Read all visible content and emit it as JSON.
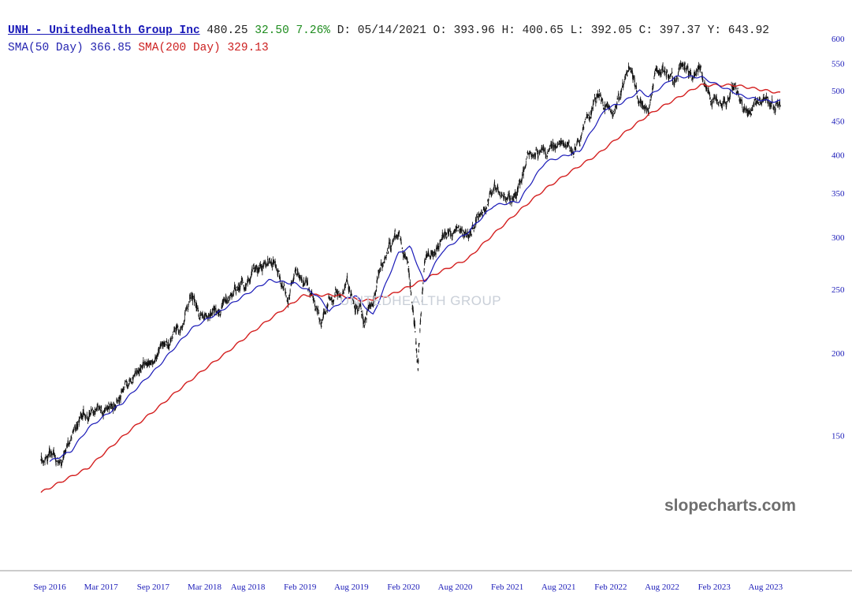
{
  "header": {
    "ticker_name": "UNH - Unitedhealth Group Inc",
    "last_price": "480.25",
    "change": "32.50",
    "change_pct": "7.26%",
    "date_label": "D: 05/14/2021",
    "open_label": "O: 393.96",
    "high_label": "H: 400.65",
    "low_label": "L: 392.05",
    "close_label": "C: 397.37",
    "y_label": "Y: 643.92",
    "sma50_label": "SMA(50 Day) 366.85",
    "sma200_label": "SMA(200 Day) 329.13"
  },
  "watermark": {
    "site": "slopecharts.com",
    "logo_text": "UNITEDHEALTH GROUP"
  },
  "colors": {
    "candles": "#111111",
    "sma50": "#1a1ab8",
    "sma200": "#d42020",
    "y_tick_labels": "#1a1ab8",
    "x_tick_labels": "#1a1ab8",
    "ticker_title": "#1a1ab8",
    "change_positive": "#1e8c1e",
    "axis_line": "#999999"
  },
  "chart_data": {
    "type": "line",
    "series_type": "ohlc price bars with moving averages",
    "y_scale": "log",
    "ylim": [
      100,
      615
    ],
    "y_ticks": [
      150,
      200,
      250,
      300,
      350,
      400,
      450,
      500,
      550,
      600
    ],
    "x_tick_labels": [
      "Sep 2016",
      "Mar 2017",
      "Sep 2017",
      "Mar 2018",
      "Aug 2018",
      "Feb 2019",
      "Aug 2019",
      "Feb 2020",
      "Aug 2020",
      "Feb 2021",
      "Aug 2021",
      "Feb 2022",
      "Aug 2022",
      "Feb 2023",
      "Aug 2023"
    ],
    "x_tick_dates": [
      "2016-09-01",
      "2017-03-01",
      "2017-09-01",
      "2018-03-01",
      "2018-08-01",
      "2019-02-01",
      "2019-08-01",
      "2020-02-01",
      "2020-08-01",
      "2021-02-01",
      "2021-08-01",
      "2022-02-01",
      "2022-08-01",
      "2023-02-01",
      "2023-08-01"
    ],
    "x_range": [
      "2016-08-01",
      "2023-09-22"
    ],
    "grid": false,
    "legend": "top-left",
    "price_anchors": [
      {
        "date": "2016-08-01",
        "price": 137
      },
      {
        "date": "2016-09-01",
        "price": 141
      },
      {
        "date": "2016-10-15",
        "price": 137
      },
      {
        "date": "2016-11-15",
        "price": 148
      },
      {
        "date": "2016-12-15",
        "price": 160
      },
      {
        "date": "2017-01-15",
        "price": 161
      },
      {
        "date": "2017-02-15",
        "price": 164
      },
      {
        "date": "2017-03-15",
        "price": 165
      },
      {
        "date": "2017-04-15",
        "price": 170
      },
      {
        "date": "2017-05-15",
        "price": 175
      },
      {
        "date": "2017-06-15",
        "price": 185
      },
      {
        "date": "2017-07-15",
        "price": 190
      },
      {
        "date": "2017-08-15",
        "price": 195
      },
      {
        "date": "2017-09-15",
        "price": 198
      },
      {
        "date": "2017-10-15",
        "price": 208
      },
      {
        "date": "2017-11-15",
        "price": 215
      },
      {
        "date": "2017-12-15",
        "price": 220
      },
      {
        "date": "2018-01-15",
        "price": 245
      },
      {
        "date": "2018-02-15",
        "price": 228
      },
      {
        "date": "2018-03-15",
        "price": 222
      },
      {
        "date": "2018-04-15",
        "price": 236
      },
      {
        "date": "2018-05-15",
        "price": 240
      },
      {
        "date": "2018-06-15",
        "price": 248
      },
      {
        "date": "2018-07-15",
        "price": 252
      },
      {
        "date": "2018-08-15",
        "price": 262
      },
      {
        "date": "2018-09-15",
        "price": 265
      },
      {
        "date": "2018-10-10",
        "price": 268
      },
      {
        "date": "2018-11-01",
        "price": 270
      },
      {
        "date": "2018-12-20",
        "price": 240
      },
      {
        "date": "2019-01-15",
        "price": 265
      },
      {
        "date": "2019-02-15",
        "price": 255
      },
      {
        "date": "2019-03-15",
        "price": 245
      },
      {
        "date": "2019-04-17",
        "price": 214
      },
      {
        "date": "2019-05-15",
        "price": 240
      },
      {
        "date": "2019-06-15",
        "price": 248
      },
      {
        "date": "2019-07-15",
        "price": 258
      },
      {
        "date": "2019-08-15",
        "price": 238
      },
      {
        "date": "2019-09-15",
        "price": 225
      },
      {
        "date": "2019-10-15",
        "price": 238
      },
      {
        "date": "2019-11-15",
        "price": 272
      },
      {
        "date": "2019-12-15",
        "price": 290
      },
      {
        "date": "2020-01-15",
        "price": 300
      },
      {
        "date": "2020-02-15",
        "price": 280
      },
      {
        "date": "2020-03-23",
        "price": 190
      },
      {
        "date": "2020-04-15",
        "price": 275
      },
      {
        "date": "2020-05-15",
        "price": 285
      },
      {
        "date": "2020-06-15",
        "price": 295
      },
      {
        "date": "2020-07-15",
        "price": 305
      },
      {
        "date": "2020-08-15",
        "price": 312
      },
      {
        "date": "2020-09-15",
        "price": 310
      },
      {
        "date": "2020-10-15",
        "price": 320
      },
      {
        "date": "2020-11-15",
        "price": 340
      },
      {
        "date": "2020-12-15",
        "price": 350
      },
      {
        "date": "2021-01-15",
        "price": 345
      },
      {
        "date": "2021-02-15",
        "price": 330
      },
      {
        "date": "2021-03-15",
        "price": 365
      },
      {
        "date": "2021-04-15",
        "price": 400
      },
      {
        "date": "2021-05-15",
        "price": 405
      },
      {
        "date": "2021-06-15",
        "price": 400
      },
      {
        "date": "2021-07-15",
        "price": 410
      },
      {
        "date": "2021-08-15",
        "price": 415
      },
      {
        "date": "2021-09-15",
        "price": 400
      },
      {
        "date": "2021-10-15",
        "price": 420
      },
      {
        "date": "2021-11-15",
        "price": 450
      },
      {
        "date": "2021-12-15",
        "price": 495
      },
      {
        "date": "2022-01-15",
        "price": 470
      },
      {
        "date": "2022-02-15",
        "price": 470
      },
      {
        "date": "2022-03-15",
        "price": 500
      },
      {
        "date": "2022-04-15",
        "price": 535
      },
      {
        "date": "2022-05-15",
        "price": 490
      },
      {
        "date": "2022-06-15",
        "price": 470
      },
      {
        "date": "2022-07-15",
        "price": 535
      },
      {
        "date": "2022-08-15",
        "price": 540
      },
      {
        "date": "2022-09-15",
        "price": 525
      },
      {
        "date": "2022-10-15",
        "price": 545
      },
      {
        "date": "2022-11-15",
        "price": 525
      },
      {
        "date": "2022-12-15",
        "price": 535
      },
      {
        "date": "2023-01-15",
        "price": 495
      },
      {
        "date": "2023-02-15",
        "price": 490
      },
      {
        "date": "2023-03-15",
        "price": 480
      },
      {
        "date": "2023-04-15",
        "price": 510
      },
      {
        "date": "2023-05-15",
        "price": 480
      },
      {
        "date": "2023-06-15",
        "price": 475
      },
      {
        "date": "2023-07-15",
        "price": 495
      },
      {
        "date": "2023-08-15",
        "price": 485
      },
      {
        "date": "2023-09-05",
        "price": 470
      },
      {
        "date": "2023-09-22",
        "price": 478
      }
    ],
    "sma50_anchors": [
      {
        "date": "2016-09-01",
        "price": 137
      },
      {
        "date": "2016-11-15",
        "price": 142
      },
      {
        "date": "2017-01-15",
        "price": 154
      },
      {
        "date": "2017-05-15",
        "price": 168
      },
      {
        "date": "2017-09-15",
        "price": 190
      },
      {
        "date": "2018-01-15",
        "price": 218
      },
      {
        "date": "2018-04-15",
        "price": 230
      },
      {
        "date": "2018-07-15",
        "price": 244
      },
      {
        "date": "2018-10-15",
        "price": 258
      },
      {
        "date": "2019-01-15",
        "price": 255
      },
      {
        "date": "2019-04-01",
        "price": 245
      },
      {
        "date": "2019-05-15",
        "price": 232
      },
      {
        "date": "2019-07-15",
        "price": 242
      },
      {
        "date": "2019-08-15",
        "price": 245
      },
      {
        "date": "2019-10-15",
        "price": 228
      },
      {
        "date": "2019-11-15",
        "price": 245
      },
      {
        "date": "2020-01-15",
        "price": 284
      },
      {
        "date": "2020-02-25",
        "price": 290
      },
      {
        "date": "2020-04-15",
        "price": 255
      },
      {
        "date": "2020-06-15",
        "price": 285
      },
      {
        "date": "2020-09-15",
        "price": 305
      },
      {
        "date": "2020-12-15",
        "price": 335
      },
      {
        "date": "2021-03-15",
        "price": 340
      },
      {
        "date": "2021-06-15",
        "price": 390
      },
      {
        "date": "2021-10-15",
        "price": 405
      },
      {
        "date": "2022-01-15",
        "price": 470
      },
      {
        "date": "2022-03-15",
        "price": 480
      },
      {
        "date": "2022-05-15",
        "price": 500
      },
      {
        "date": "2022-06-15",
        "price": 490
      },
      {
        "date": "2022-09-15",
        "price": 525
      },
      {
        "date": "2022-12-15",
        "price": 525
      },
      {
        "date": "2023-02-15",
        "price": 510
      },
      {
        "date": "2023-05-15",
        "price": 490
      },
      {
        "date": "2023-08-15",
        "price": 482
      },
      {
        "date": "2023-09-22",
        "price": 482
      }
    ],
    "sma200_anchors": [
      {
        "date": "2016-08-01",
        "price": 123
      },
      {
        "date": "2017-01-15",
        "price": 134
      },
      {
        "date": "2017-09-15",
        "price": 165
      },
      {
        "date": "2018-05-15",
        "price": 200
      },
      {
        "date": "2018-10-15",
        "price": 225
      },
      {
        "date": "2019-02-15",
        "price": 245
      },
      {
        "date": "2019-06-15",
        "price": 245
      },
      {
        "date": "2019-09-15",
        "price": 240
      },
      {
        "date": "2019-12-15",
        "price": 245
      },
      {
        "date": "2020-03-15",
        "price": 255
      },
      {
        "date": "2020-09-15",
        "price": 278
      },
      {
        "date": "2021-01-15",
        "price": 312
      },
      {
        "date": "2021-06-15",
        "price": 355
      },
      {
        "date": "2021-12-15",
        "price": 400
      },
      {
        "date": "2022-06-15",
        "price": 460
      },
      {
        "date": "2022-12-15",
        "price": 510
      },
      {
        "date": "2023-04-15",
        "price": 510
      },
      {
        "date": "2023-09-22",
        "price": 496
      }
    ]
  }
}
